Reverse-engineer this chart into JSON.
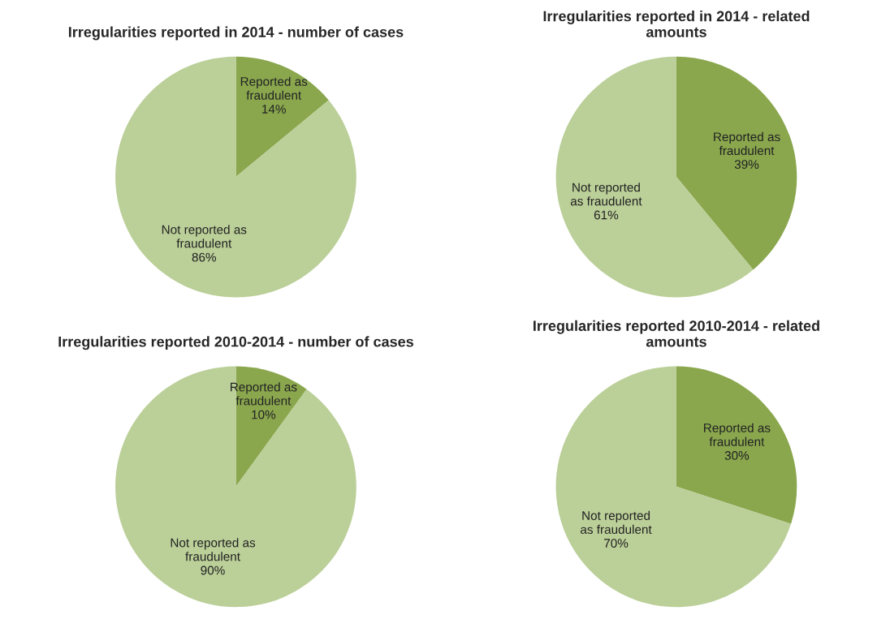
{
  "chart_data": [
    {
      "type": "pie",
      "title": "Irregularities reported in 2014 - number of cases",
      "categories": [
        "Reported as\nfraudulent",
        "Not reported as\nfraudulent"
      ],
      "values": [
        14,
        86
      ],
      "value_labels": [
        "14%",
        "86%"
      ],
      "colors": [
        "#8aa74e",
        "#bbcf98"
      ]
    },
    {
      "type": "pie",
      "title": "Irregularities reported in 2014 - related\namounts",
      "categories": [
        "Reported as\nfraudulent",
        "Not reported\nas fraudulent"
      ],
      "values": [
        39,
        61
      ],
      "value_labels": [
        "39%",
        "61%"
      ],
      "colors": [
        "#8aa74e",
        "#bbcf98"
      ]
    },
    {
      "type": "pie",
      "title": "Irregularities reported 2010-2014 - number of cases",
      "categories": [
        "Reported as\nfraudulent",
        "Not reported as\nfraudulent"
      ],
      "values": [
        10,
        90
      ],
      "value_labels": [
        "10%",
        "90%"
      ],
      "colors": [
        "#8aa74e",
        "#bbcf98"
      ]
    },
    {
      "type": "pie",
      "title": "Irregularities reported 2010-2014 - related\namounts",
      "categories": [
        "Reported as\nfraudulent",
        "Not reported\nas fraudulent"
      ],
      "values": [
        30,
        70
      ],
      "value_labels": [
        "30%",
        "70%"
      ],
      "colors": [
        "#8aa74e",
        "#bbcf98"
      ]
    }
  ]
}
